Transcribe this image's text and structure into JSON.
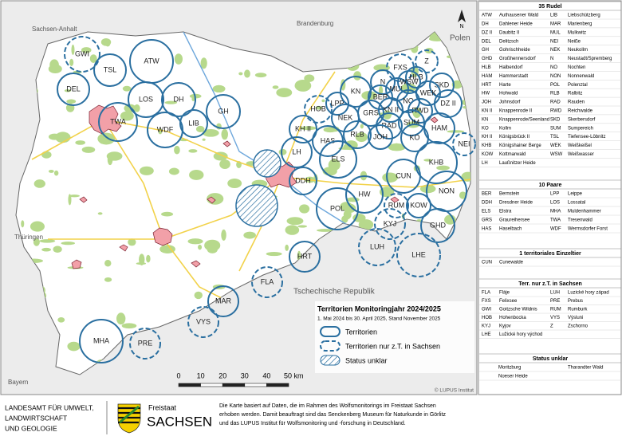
{
  "map": {
    "regions": [
      "Sachsen-Anhalt",
      "Brandenburg",
      "Polen",
      "Thüringen",
      "Tschechische Republik",
      "Bayern"
    ],
    "north": "N",
    "territories": [
      "GWI",
      "TSL",
      "ATW",
      "DEL",
      "LOS",
      "DH",
      "GH",
      "TWA",
      "WDF",
      "LIB",
      "HOB",
      "LPP",
      "KN",
      "N",
      "FXS",
      "Z",
      "MUL",
      "HLB",
      "WSW",
      "SKD",
      "NO",
      "WEK",
      "BER",
      "DZ II",
      "KN II",
      "NEK",
      "GRS",
      "RWD",
      "KH II",
      "HAS",
      "RLB",
      "RAD",
      "SUM",
      "JOH",
      "HAM",
      "KO",
      "NEI",
      "LH",
      "ELS",
      "KHB",
      "CUN",
      "DDH",
      "HW",
      "NON",
      "POL",
      "RUM",
      "KOW",
      "KYJ",
      "GHD",
      "LUH",
      "LHE",
      "HRT",
      "FLA",
      "MAR",
      "VYS",
      "MHA",
      "PRE"
    ],
    "legend": {
      "title": "Territorien Monitoringjahr 2024/2025",
      "subtitle": "1. Mai 2024 bis 30. April 2025, Stand November 2025",
      "items": [
        "Territorien",
        "Territorien nur z.T. in Sachsen",
        "Status unklar"
      ]
    },
    "scale": [
      "0",
      "10",
      "20",
      "30",
      "40",
      "50 km"
    ],
    "credit": "© LUPUS Institut"
  },
  "sidebar": {
    "sections": [
      {
        "title": "35 Rudel",
        "rows": [
          [
            "ATW",
            "Authausener Wald",
            "LIB",
            "Liebschützberg"
          ],
          [
            "DH",
            "Dahlener Heide",
            "MAR",
            "Marienberg"
          ],
          [
            "DZ II",
            "Daubitz II",
            "MUL",
            "Mulkwitz"
          ],
          [
            "DEL",
            "Delitzsch",
            "NEI",
            "Neiße"
          ],
          [
            "GH",
            "Gohrischheide",
            "NEK",
            "Neukollm"
          ],
          [
            "GHD",
            "Großhennersdorf",
            "N",
            "Neustadt/Spremberg"
          ],
          [
            "HLB",
            "Halbendorf",
            "NO",
            "Nochten"
          ],
          [
            "HAM",
            "Hammerstadt",
            "NON",
            "Nonnenwald"
          ],
          [
            "HRT",
            "Harte",
            "POL",
            "Polenztal"
          ],
          [
            "HW",
            "Hohwald",
            "RLB",
            "Ralbitz"
          ],
          [
            "JOH",
            "Johnsdorf",
            "RAD",
            "Rauden"
          ],
          [
            "KN II",
            "Knappenrode II",
            "RWD",
            "Reichwalde"
          ],
          [
            "KN",
            "Knappenrode/Seenland",
            "SKD",
            "Skerbersdorf"
          ],
          [
            "KO",
            "Kollm",
            "SUM",
            "Sumpereich"
          ],
          [
            "KH II",
            "Königsbrück II",
            "TSL",
            "Tiefensee-Löbnitz"
          ],
          [
            "KHB",
            "Königshainer Berge",
            "WEK",
            "Weißkeißel"
          ],
          [
            "KOW",
            "Kottmarwald",
            "WSW",
            "Weißwasser"
          ],
          [
            "LH",
            "Laußnitzer Heide"
          ]
        ]
      },
      {
        "title": "10 Paare",
        "rows": [
          [
            "BER",
            "Bernstein",
            "LPP",
            "Leippe"
          ],
          [
            "DDH",
            "Dresdner Heide",
            "LOS",
            "Lossatal"
          ],
          [
            "ELS",
            "Elstra",
            "MHA",
            "Muldenhammer"
          ],
          [
            "GRS",
            "Graureihersee",
            "TWA",
            "Tresenwald"
          ],
          [
            "HAS",
            "Haselbach",
            "WDF",
            "Wermsdorfer Forst"
          ]
        ]
      },
      {
        "title": "1 territoriales Einzeltier",
        "rows": [
          [
            "CUN",
            "Cunewalde"
          ]
        ]
      },
      {
        "title": "Terr. nur z.T. in Sachsen",
        "rows": [
          [
            "FLA",
            "Fláje",
            "LUH",
            "Luzické hory západ"
          ],
          [
            "FXS",
            "Felixsee",
            "PRE",
            "Prebus"
          ],
          [
            "GWI",
            "Goitzsche Wildnis",
            "RUM",
            "Rumburk"
          ],
          [
            "HOB",
            "Hohenbocka",
            "VYS",
            "Výsluni"
          ],
          [
            "KYJ",
            "Kyjov",
            "Z",
            "Zschorno"
          ],
          [
            "LHE",
            "Lužické hory východ"
          ]
        ]
      },
      {
        "title": "Status unklar",
        "rows": [
          [
            "Moritzburg",
            "Tharandter Wald"
          ],
          [
            "Noeser Heide"
          ]
        ]
      }
    ]
  },
  "footer": {
    "agency": [
      "LANDESAMT FÜR UMWELT,",
      "LANDWIRTSCHAFT",
      "UND GEOLOGIE"
    ],
    "state": [
      "Freistaat",
      "SACHSEN"
    ],
    "note": [
      "Die Karte basiert auf Daten, die im Rahmen des Wolfsmonitorings im Freistaat Sachsen",
      "erhoben werden. Damit beauftragt sind das Senckenberg Museum für Naturkunde in Görlitz",
      "und das LUPUS Institut für Wolfsmonitoring und -forschung in Deutschland."
    ]
  }
}
